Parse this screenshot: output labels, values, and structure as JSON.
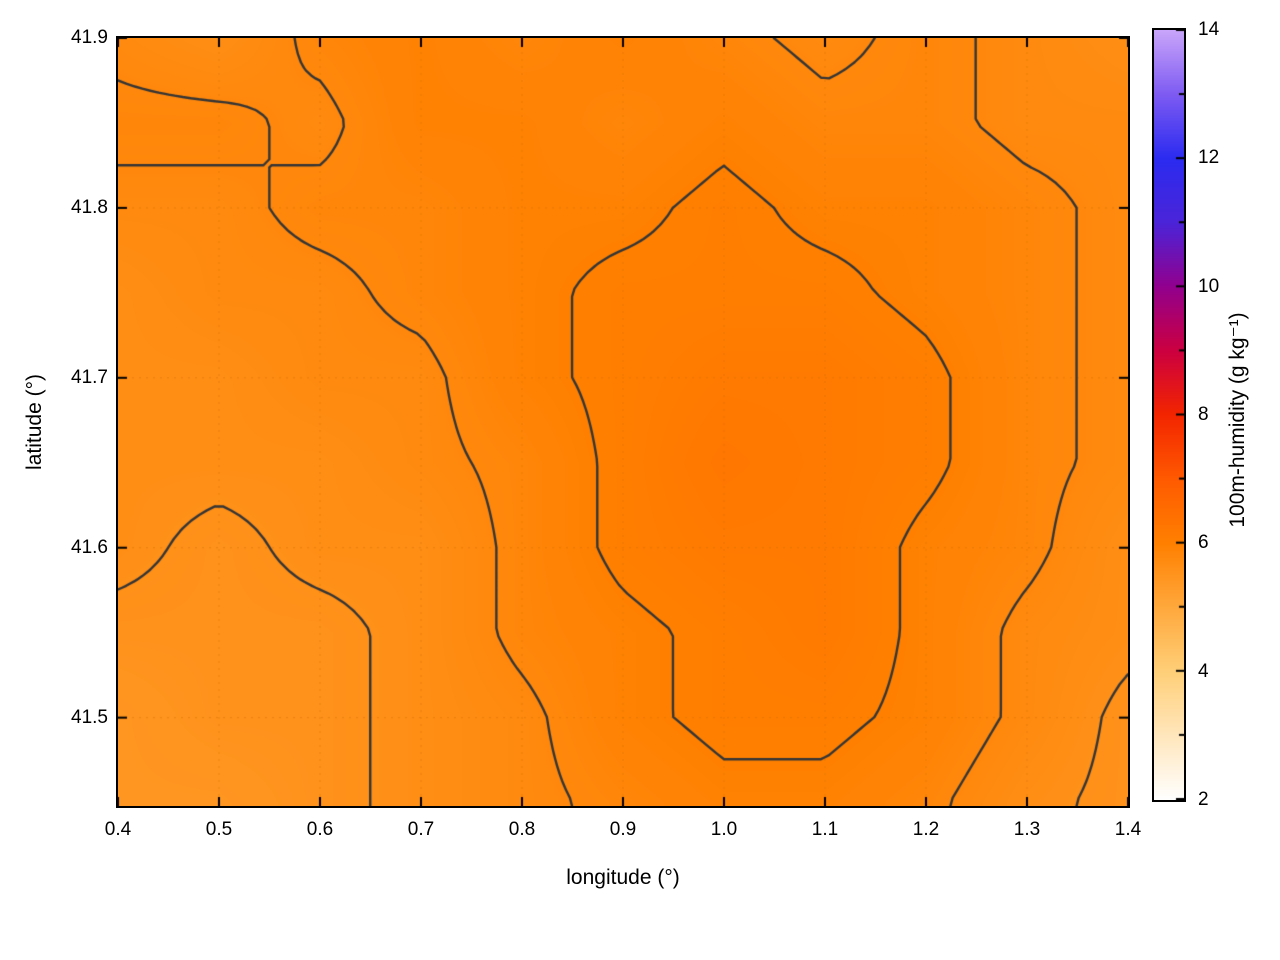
{
  "figure": {
    "background": "#ffffff",
    "border_color": "#000000"
  },
  "chart_data": {
    "type": "heatmap",
    "title": "",
    "xlabel": "longitude (°)",
    "ylabel": "latitude (°)",
    "xlim": [
      0.4,
      1.4
    ],
    "ylim": [
      41.448,
      41.9
    ],
    "x_ticks": [
      0.4,
      0.5,
      0.6,
      0.7,
      0.8,
      0.9,
      1.0,
      1.1,
      1.2,
      1.3,
      1.4
    ],
    "x_tick_labels": [
      "0.4",
      "0.5",
      "0.6",
      "0.7",
      "0.8",
      "0.9",
      "1.0",
      "1.1",
      "1.2",
      "1.3",
      "1.4"
    ],
    "y_ticks": [
      41.5,
      41.6,
      41.7,
      41.8,
      41.9
    ],
    "y_tick_labels": [
      "41.5",
      "41.6",
      "41.7",
      "41.8",
      "41.9"
    ],
    "grid": true,
    "grid_style": "dotted",
    "grid_color": "rgba(205,110,0,0.45)",
    "contour_levels": [
      5.6,
      5.8,
      6.0
    ],
    "contour_color": "#353535",
    "colorbar": {
      "label": "100m-humidity (g kg⁻¹)",
      "range": [
        2,
        14
      ],
      "ticks": [
        2,
        3,
        4,
        5,
        6,
        7,
        8,
        9,
        10,
        11,
        12,
        13,
        14
      ],
      "labeled_ticks": [
        2,
        4,
        6,
        8,
        10,
        12,
        14
      ],
      "tick_labels": [
        "2",
        "4",
        "6",
        "8",
        "10",
        "12",
        "14"
      ],
      "stops": [
        [
          2,
          "#ffffff"
        ],
        [
          3,
          "#ffe6bc"
        ],
        [
          4,
          "#ffcf78"
        ],
        [
          5,
          "#ffa83c"
        ],
        [
          6,
          "#ff8000"
        ],
        [
          7,
          "#ff5a00"
        ],
        [
          8,
          "#f32500"
        ],
        [
          9,
          "#cc0040"
        ],
        [
          10,
          "#92008e"
        ],
        [
          11,
          "#4b24d8"
        ],
        [
          12,
          "#2b2bf0"
        ],
        [
          13,
          "#7e5bf2"
        ],
        [
          14,
          "#c9a5fa"
        ]
      ]
    },
    "field": {
      "units": "g kg⁻¹",
      "lon": [
        0.4,
        0.5,
        0.6,
        0.7,
        0.8,
        0.9,
        1.0,
        1.1,
        1.2,
        1.3,
        1.4
      ],
      "lat": [
        41.45,
        41.5,
        41.55,
        41.6,
        41.65,
        41.7,
        41.75,
        41.8,
        41.85,
        41.9
      ],
      "values": [
        [
          5.45,
          5.45,
          5.55,
          5.65,
          5.75,
          5.85,
          5.95,
          5.95,
          5.85,
          5.65,
          5.55
        ],
        [
          5.45,
          5.55,
          5.55,
          5.65,
          5.75,
          5.95,
          6.05,
          6.05,
          5.95,
          5.75,
          5.55
        ],
        [
          5.55,
          5.55,
          5.55,
          5.65,
          5.85,
          5.95,
          6.05,
          6.15,
          5.95,
          5.75,
          5.65
        ],
        [
          5.65,
          5.55,
          5.65,
          5.65,
          5.85,
          6.05,
          6.15,
          6.15,
          5.95,
          5.85,
          5.65
        ],
        [
          5.65,
          5.65,
          5.65,
          5.75,
          5.85,
          6.05,
          6.25,
          6.15,
          6.05,
          5.85,
          5.75
        ],
        [
          5.65,
          5.65,
          5.75,
          5.75,
          5.95,
          6.05,
          6.15,
          6.15,
          6.05,
          5.85,
          5.75
        ],
        [
          5.65,
          5.75,
          5.75,
          5.85,
          5.95,
          6.05,
          6.05,
          6.05,
          5.95,
          5.85,
          5.75
        ],
        [
          5.75,
          5.75,
          5.85,
          5.85,
          5.95,
          5.95,
          6.05,
          5.95,
          5.95,
          5.85,
          5.75
        ],
        [
          5.85,
          5.85,
          5.75,
          5.95,
          5.95,
          5.85,
          5.95,
          5.85,
          5.85,
          5.75,
          5.75
        ],
        [
          5.75,
          5.65,
          5.85,
          5.95,
          5.85,
          5.95,
          5.85,
          5.75,
          5.85,
          5.75,
          5.65
        ]
      ]
    }
  }
}
